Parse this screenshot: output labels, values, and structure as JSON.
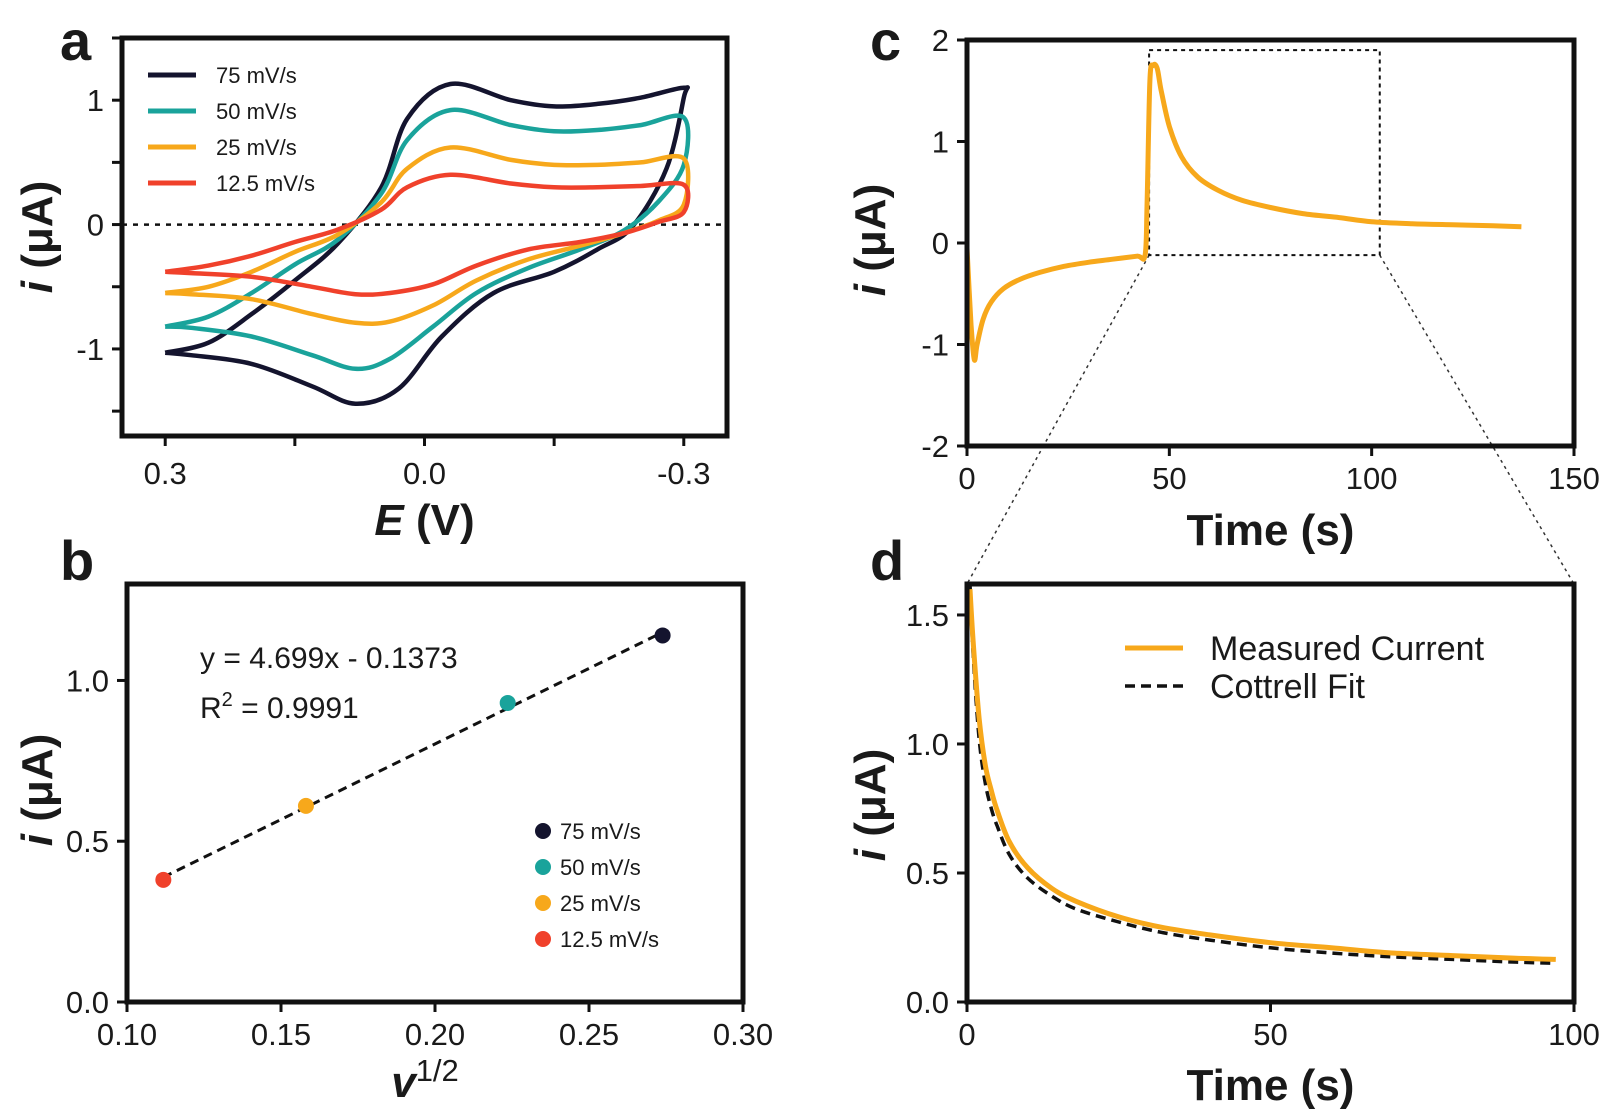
{
  "panels": {
    "a": {
      "letter": "a",
      "chart_data": {
        "type": "line",
        "xlabel_var": "E",
        "xlabel_unit": " (V)",
        "ylabel_var": "i",
        "ylabel_unit": " (μA)",
        "xlim": [
          0.35,
          -0.35
        ],
        "ylim": [
          -1.7,
          1.5
        ],
        "xticks": [
          {
            "v": 0.3,
            "label": "0.3"
          },
          {
            "v": 0.0,
            "label": "0.0"
          },
          {
            "v": -0.3,
            "label": "-0.3"
          }
        ],
        "xminor": [
          0.15,
          -0.15
        ],
        "yticks": [
          {
            "v": 1,
            "label": "1"
          },
          {
            "v": 0,
            "label": "0"
          },
          {
            "v": -1,
            "label": "-1"
          }
        ],
        "yminor": [
          1.5,
          0.5,
          -0.5,
          -1.5
        ],
        "zero_line": true,
        "legend_position": "top-left",
        "series": [
          {
            "name": "75 mV/s",
            "color": "#14142e",
            "Eupper": 0.3,
            "Elower": -0.3,
            "fwd": [
              [
                0.3,
                -1.03
              ],
              [
                0.25,
                -0.95
              ],
              [
                0.2,
                -0.72
              ],
              [
                0.15,
                -0.45
              ],
              [
                0.1,
                -0.15
              ],
              [
                0.05,
                0.3
              ],
              [
                0.02,
                0.85
              ],
              [
                -0.03,
                1.13
              ],
              [
                -0.1,
                1.0
              ],
              [
                -0.15,
                0.95
              ],
              [
                -0.2,
                0.97
              ],
              [
                -0.25,
                1.02
              ],
              [
                -0.3,
                1.1
              ]
            ],
            "rev": [
              [
                -0.3,
                1.02
              ],
              [
                -0.28,
                0.45
              ],
              [
                -0.24,
                -0.02
              ],
              [
                -0.2,
                -0.2
              ],
              [
                -0.15,
                -0.38
              ],
              [
                -0.08,
                -0.55
              ],
              [
                -0.02,
                -0.9
              ],
              [
                0.03,
                -1.32
              ],
              [
                0.08,
                -1.44
              ],
              [
                0.13,
                -1.3
              ],
              [
                0.2,
                -1.12
              ],
              [
                0.27,
                -1.05
              ],
              [
                0.3,
                -1.03
              ]
            ]
          },
          {
            "name": "50 mV/s",
            "color": "#1aa39b",
            "Eupper": 0.3,
            "Elower": -0.3,
            "fwd": [
              [
                0.3,
                -0.82
              ],
              [
                0.25,
                -0.74
              ],
              [
                0.2,
                -0.55
              ],
              [
                0.15,
                -0.32
              ],
              [
                0.1,
                -0.12
              ],
              [
                0.05,
                0.25
              ],
              [
                0.02,
                0.68
              ],
              [
                -0.03,
                0.92
              ],
              [
                -0.1,
                0.8
              ],
              [
                -0.15,
                0.75
              ],
              [
                -0.2,
                0.76
              ],
              [
                -0.25,
                0.8
              ],
              [
                -0.3,
                0.86
              ]
            ],
            "rev": [
              [
                -0.3,
                0.48
              ],
              [
                -0.27,
                0.18
              ],
              [
                -0.23,
                -0.05
              ],
              [
                -0.18,
                -0.2
              ],
              [
                -0.12,
                -0.35
              ],
              [
                -0.06,
                -0.55
              ],
              [
                -0.01,
                -0.82
              ],
              [
                0.04,
                -1.08
              ],
              [
                0.08,
                -1.16
              ],
              [
                0.13,
                -1.05
              ],
              [
                0.2,
                -0.9
              ],
              [
                0.27,
                -0.83
              ],
              [
                0.3,
                -0.82
              ]
            ]
          },
          {
            "name": "25 mV/s",
            "color": "#f7a81b",
            "Eupper": 0.3,
            "Elower": -0.3,
            "fwd": [
              [
                0.3,
                -0.55
              ],
              [
                0.25,
                -0.5
              ],
              [
                0.2,
                -0.38
              ],
              [
                0.15,
                -0.22
              ],
              [
                0.1,
                -0.08
              ],
              [
                0.05,
                0.18
              ],
              [
                0.02,
                0.45
              ],
              [
                -0.03,
                0.62
              ],
              [
                -0.1,
                0.52
              ],
              [
                -0.15,
                0.48
              ],
              [
                -0.2,
                0.48
              ],
              [
                -0.25,
                0.5
              ],
              [
                -0.3,
                0.53
              ]
            ],
            "rev": [
              [
                -0.3,
                0.16
              ],
              [
                -0.27,
                0.03
              ],
              [
                -0.23,
                -0.07
              ],
              [
                -0.18,
                -0.17
              ],
              [
                -0.12,
                -0.28
              ],
              [
                -0.06,
                -0.45
              ],
              [
                -0.01,
                -0.65
              ],
              [
                0.04,
                -0.78
              ],
              [
                0.08,
                -0.79
              ],
              [
                0.13,
                -0.72
              ],
              [
                0.2,
                -0.6
              ],
              [
                0.27,
                -0.56
              ],
              [
                0.3,
                -0.55
              ]
            ]
          },
          {
            "name": "12.5 mV/s",
            "color": "#f0412b",
            "Eupper": 0.3,
            "Elower": -0.3,
            "fwd": [
              [
                0.3,
                -0.38
              ],
              [
                0.25,
                -0.33
              ],
              [
                0.2,
                -0.25
              ],
              [
                0.15,
                -0.14
              ],
              [
                0.1,
                -0.04
              ],
              [
                0.05,
                0.12
              ],
              [
                0.02,
                0.3
              ],
              [
                -0.03,
                0.4
              ],
              [
                -0.1,
                0.33
              ],
              [
                -0.15,
                0.3
              ],
              [
                -0.2,
                0.3
              ],
              [
                -0.25,
                0.31
              ],
              [
                -0.3,
                0.32
              ]
            ],
            "rev": [
              [
                -0.3,
                0.1
              ],
              [
                -0.27,
                0.02
              ],
              [
                -0.23,
                -0.07
              ],
              [
                -0.18,
                -0.14
              ],
              [
                -0.12,
                -0.2
              ],
              [
                -0.06,
                -0.33
              ],
              [
                -0.01,
                -0.48
              ],
              [
                0.04,
                -0.55
              ],
              [
                0.08,
                -0.56
              ],
              [
                0.13,
                -0.5
              ],
              [
                0.2,
                -0.42
              ],
              [
                0.27,
                -0.39
              ],
              [
                0.3,
                -0.38
              ]
            ]
          }
        ]
      }
    },
    "b": {
      "letter": "b",
      "chart_data": {
        "type": "scatter",
        "xlabel_var": "v",
        "xlabel_sup": "1/2",
        "ylabel_var": "i",
        "ylabel_unit": " (μA)",
        "xlim": [
          0.1,
          0.3
        ],
        "ylim": [
          0.0,
          1.3
        ],
        "xticks": [
          {
            "v": 0.1,
            "label": "0.10"
          },
          {
            "v": 0.15,
            "label": "0.15"
          },
          {
            "v": 0.2,
            "label": "0.20"
          },
          {
            "v": 0.25,
            "label": "0.25"
          },
          {
            "v": 0.3,
            "label": "0.30"
          }
        ],
        "yticks": [
          {
            "v": 0.0,
            "label": "0.0"
          },
          {
            "v": 0.5,
            "label": "0.5"
          },
          {
            "v": 1.0,
            "label": "1.0"
          }
        ],
        "fit": {
          "slope": 4.699,
          "intercept": -0.1373,
          "x_range": [
            0.1118,
            0.2739
          ]
        },
        "equation": "y = 4.699x - 0.1373",
        "r2_prefix": "R",
        "r2_sup": "2",
        "r2_value": " = 0.9991",
        "legend_position": "bottom-right",
        "points": [
          {
            "name": "75 mV/s",
            "x": 0.2739,
            "y": 1.14,
            "color": "#14142e"
          },
          {
            "name": "50 mV/s",
            "x": 0.2236,
            "y": 0.93,
            "color": "#1aa39b"
          },
          {
            "name": "25 mV/s",
            "x": 0.1581,
            "y": 0.61,
            "color": "#f7a81b"
          },
          {
            "name": "12.5 mV/s",
            "x": 0.1118,
            "y": 0.38,
            "color": "#f0412b"
          }
        ]
      }
    },
    "c": {
      "letter": "c",
      "chart_data": {
        "type": "line",
        "xlabel": "Time (s)",
        "ylabel_var": "i",
        "ylabel_unit": " (μA)",
        "xlim": [
          0,
          150
        ],
        "ylim": [
          -2,
          2
        ],
        "xticks": [
          {
            "v": 0,
            "label": "0"
          },
          {
            "v": 50,
            "label": "50"
          },
          {
            "v": 100,
            "label": "100"
          },
          {
            "v": 150,
            "label": "150"
          }
        ],
        "yticks": [
          {
            "v": 2,
            "label": "2"
          },
          {
            "v": 1,
            "label": "1"
          },
          {
            "v": 0,
            "label": "0"
          },
          {
            "v": -1,
            "label": "-1"
          },
          {
            "v": -2,
            "label": "-2"
          }
        ],
        "zoom_box": {
          "x": [
            45,
            102
          ],
          "y": [
            -0.12,
            1.9
          ]
        },
        "series": [
          {
            "name": "current",
            "color": "#f7a81b",
            "points": [
              [
                0,
                -0.05
              ],
              [
                1,
                -0.8
              ],
              [
                1.8,
                -1.15
              ],
              [
                2.5,
                -1.0
              ],
              [
                4,
                -0.75
              ],
              [
                6,
                -0.58
              ],
              [
                9,
                -0.45
              ],
              [
                13,
                -0.36
              ],
              [
                18,
                -0.29
              ],
              [
                24,
                -0.23
              ],
              [
                30,
                -0.19
              ],
              [
                36,
                -0.16
              ],
              [
                42,
                -0.13
              ],
              [
                44,
                -0.12
              ],
              [
                44.5,
                0.4
              ],
              [
                45.2,
                1.6
              ],
              [
                46,
                1.75
              ],
              [
                47,
                1.72
              ],
              [
                48,
                1.5
              ],
              [
                50,
                1.15
              ],
              [
                53,
                0.85
              ],
              [
                57,
                0.65
              ],
              [
                62,
                0.52
              ],
              [
                68,
                0.42
              ],
              [
                75,
                0.35
              ],
              [
                83,
                0.29
              ],
              [
                92,
                0.25
              ],
              [
                100,
                0.21
              ],
              [
                110,
                0.19
              ],
              [
                120,
                0.18
              ],
              [
                130,
                0.17
              ],
              [
                137,
                0.16
              ]
            ]
          }
        ]
      }
    },
    "d": {
      "letter": "d",
      "chart_data": {
        "type": "line",
        "xlabel": "Time (s)",
        "ylabel_var": "i",
        "ylabel_unit": " (μA)",
        "xlim": [
          0,
          100
        ],
        "ylim": [
          0.0,
          1.62
        ],
        "xticks": [
          {
            "v": 0,
            "label": "0"
          },
          {
            "v": 50,
            "label": "50"
          },
          {
            "v": 100,
            "label": "100"
          }
        ],
        "yticks": [
          {
            "v": 0.0,
            "label": "0.0"
          },
          {
            "v": 0.5,
            "label": "0.5"
          },
          {
            "v": 1.0,
            "label": "1.0"
          },
          {
            "v": 1.5,
            "label": "1.5"
          }
        ],
        "legend_position": "top-right",
        "series": [
          {
            "name": "Measured Current",
            "color": "#f7a81b",
            "style": "solid",
            "points": [
              [
                0.5,
                1.6
              ],
              [
                1,
                1.4
              ],
              [
                2,
                1.1
              ],
              [
                3,
                0.92
              ],
              [
                4,
                0.82
              ],
              [
                5,
                0.74
              ],
              [
                7,
                0.62
              ],
              [
                10,
                0.52
              ],
              [
                14,
                0.44
              ],
              [
                18,
                0.39
              ],
              [
                25,
                0.33
              ],
              [
                32,
                0.29
              ],
              [
                40,
                0.26
              ],
              [
                50,
                0.23
              ],
              [
                60,
                0.21
              ],
              [
                70,
                0.19
              ],
              [
                80,
                0.18
              ],
              [
                90,
                0.17
              ],
              [
                97,
                0.165
              ]
            ]
          },
          {
            "name": "Cottrell Fit",
            "color": "#111111",
            "style": "dashed",
            "points": [
              [
                0.5,
                1.62
              ],
              [
                1,
                1.35
              ],
              [
                2,
                1.02
              ],
              [
                3,
                0.85
              ],
              [
                4,
                0.75
              ],
              [
                5,
                0.68
              ],
              [
                7,
                0.57
              ],
              [
                10,
                0.48
              ],
              [
                14,
                0.41
              ],
              [
                18,
                0.36
              ],
              [
                25,
                0.31
              ],
              [
                32,
                0.27
              ],
              [
                40,
                0.24
              ],
              [
                50,
                0.21
              ],
              [
                60,
                0.19
              ],
              [
                70,
                0.175
              ],
              [
                80,
                0.165
              ],
              [
                90,
                0.155
              ],
              [
                97,
                0.15
              ]
            ]
          }
        ]
      }
    }
  }
}
